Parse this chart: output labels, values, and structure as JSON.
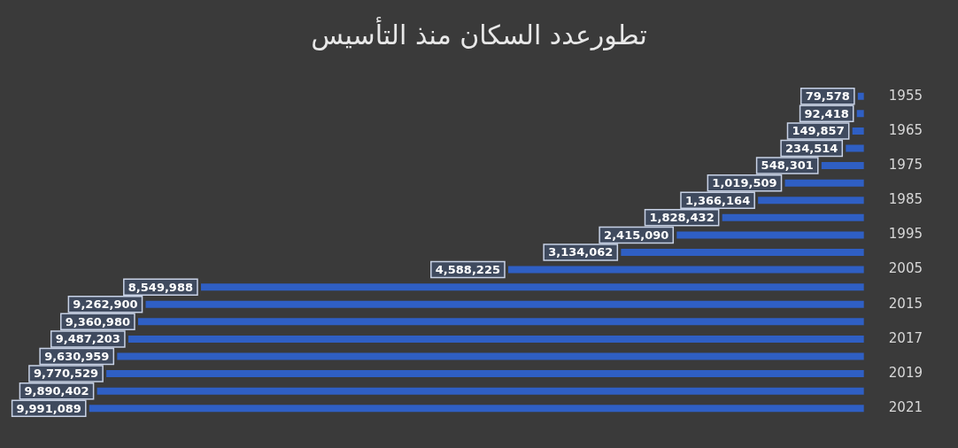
{
  "chart_data": {
    "type": "bar",
    "orientation": "horizontal",
    "title": "تطورعدد السكان منذ التأسيس",
    "categories": [
      "1955",
      null,
      "1965",
      null,
      "1975",
      null,
      "1985",
      null,
      "1995",
      null,
      "2005",
      null,
      "2015",
      null,
      "2017",
      null,
      "2019",
      null,
      "2021"
    ],
    "values": [
      79578,
      92418,
      149857,
      234514,
      548301,
      1019509,
      1366164,
      1828432,
      2415090,
      3134062,
      4588225,
      8549988,
      9262900,
      9360980,
      9487203,
      9630959,
      9770529,
      9890402,
      9991089
    ],
    "value_labels": [
      "79,578",
      "92,418",
      "149,857",
      "234,514",
      "548,301",
      "1,019,509",
      "1,366,164",
      "1,828,432",
      "2,415,090",
      "3,134,062",
      "4,588,225",
      "8,549,988",
      "9,262,900",
      "9,360,980",
      "9,487,203",
      "9,630,959",
      "9,770,529",
      "9,890,402",
      "9,991,089"
    ],
    "color": "#2f5fc4",
    "legend": false,
    "grid": false
  }
}
